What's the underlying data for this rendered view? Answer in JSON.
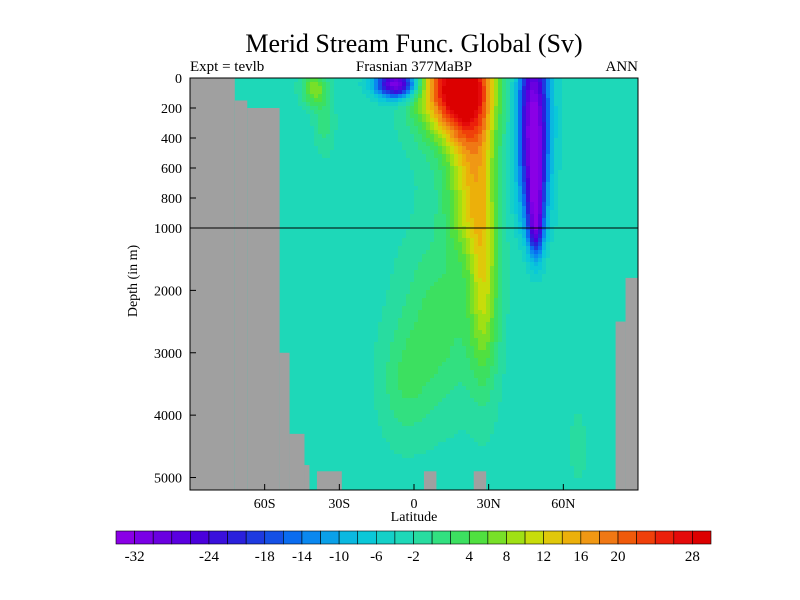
{
  "chart_data": {
    "type": "heatmap",
    "title": "Merid Stream Func. Global (Sv)",
    "left_label": "Expt = tevlb",
    "center_label": "Frasnian 377MaBP",
    "right_label": "ANN",
    "xlabel": "Latitude",
    "ylabel": "Depth (in m)",
    "x_range": [
      -90,
      90
    ],
    "x_ticks": [
      {
        "value": -60,
        "label": "60S"
      },
      {
        "value": -30,
        "label": "30S"
      },
      {
        "value": 0,
        "label": "0"
      },
      {
        "value": 30,
        "label": "30N"
      },
      {
        "value": 60,
        "label": "60N"
      }
    ],
    "y_upper_ticks": [
      {
        "value": 0,
        "label": "0"
      },
      {
        "value": 200,
        "label": "200"
      },
      {
        "value": 400,
        "label": "400"
      },
      {
        "value": 600,
        "label": "600"
      },
      {
        "value": 800,
        "label": "800"
      },
      {
        "value": 1000,
        "label": "1000"
      }
    ],
    "y_lower_ticks": [
      {
        "value": 2000,
        "label": "2000"
      },
      {
        "value": 3000,
        "label": "3000"
      },
      {
        "value": 4000,
        "label": "4000"
      },
      {
        "value": 5000,
        "label": "5000"
      }
    ],
    "depth_break": 1000,
    "depth_max": 5200,
    "land_color": "#a0a0a0",
    "colorbar": {
      "boundaries": [
        -32,
        -30,
        -28,
        -26,
        -24,
        -22,
        -20,
        -18,
        -16,
        -14,
        -12,
        -10,
        -8,
        -6,
        -4,
        -2,
        0,
        2,
        4,
        6,
        8,
        10,
        12,
        14,
        16,
        18,
        20,
        22,
        24,
        26,
        28,
        30
      ],
      "colors": [
        "#8a00e6",
        "#7a00e6",
        "#6a00e0",
        "#5a00e0",
        "#4a00dc",
        "#3a10dc",
        "#2a20dc",
        "#1e3ae0",
        "#1450e6",
        "#0a6cf0",
        "#0a88f0",
        "#0aa0e8",
        "#0ab8e0",
        "#0ac8d8",
        "#14d0c8",
        "#1ed8b8",
        "#28dca0",
        "#32e080",
        "#3ce060",
        "#50e040",
        "#78e028",
        "#a0e014",
        "#c8dc0a",
        "#e0c80a",
        "#ecb00a",
        "#f09814",
        "#f07814",
        "#f05a0a",
        "#f0400a",
        "#ec200a",
        "#e40a0a",
        "#dc0000"
      ],
      "labels": [
        "-32",
        "-24",
        "-18",
        "-14",
        "-10",
        "-6",
        "-2",
        "4",
        "8",
        "12",
        "16",
        "20",
        "28"
      ],
      "label_values": [
        -32,
        -24,
        -18,
        -14,
        -10,
        -6,
        -2,
        4,
        8,
        12,
        16,
        20,
        28
      ]
    },
    "background_value": -1,
    "land_mask": [
      {
        "lat_min": -90,
        "lat_max": -72,
        "depth_min": 0,
        "depth_max": 5200
      },
      {
        "lat_min": -72,
        "lat_max": -67,
        "depth_min": 150,
        "depth_max": 5200
      },
      {
        "lat_min": -67,
        "lat_max": -54,
        "depth_min": 200,
        "depth_max": 5200
      },
      {
        "lat_min": -54,
        "lat_max": -50,
        "depth_min": 3000,
        "depth_max": 5200
      },
      {
        "lat_min": -50,
        "lat_max": -44,
        "depth_min": 4300,
        "depth_max": 5200
      },
      {
        "lat_min": -44,
        "lat_max": -42,
        "depth_min": 4800,
        "depth_max": 5200
      },
      {
        "lat_min": -39,
        "lat_max": -29,
        "depth_min": 4900,
        "depth_max": 5200
      },
      {
        "lat_min": 4,
        "lat_max": 9,
        "depth_min": 4900,
        "depth_max": 5200
      },
      {
        "lat_min": 24,
        "lat_max": 29,
        "depth_min": 4900,
        "depth_max": 5200
      },
      {
        "lat_min": 81,
        "lat_max": 85,
        "depth_min": 2500,
        "depth_max": 5200
      },
      {
        "lat_min": 85,
        "lat_max": 90,
        "depth_min": 1800,
        "depth_max": 5200
      }
    ],
    "features": [
      {
        "lat": 16,
        "depth": 60,
        "lat_half_width": 14,
        "depth_scale": 320,
        "value": 30
      },
      {
        "lat": 22,
        "depth": 500,
        "lat_half_width": 9,
        "depth_scale": 900,
        "value": 14
      },
      {
        "lat": 28,
        "depth": 1800,
        "lat_half_width": 6,
        "depth_scale": 1600,
        "value": 13
      },
      {
        "lat": 10,
        "depth": 2500,
        "lat_half_width": 15,
        "depth_scale": 1400,
        "value": 6
      },
      {
        "lat": 48,
        "depth": 300,
        "lat_half_width": 6,
        "depth_scale": 650,
        "value": -30
      },
      {
        "lat": 49,
        "depth": 1000,
        "lat_half_width": 3,
        "depth_scale": 500,
        "value": -20
      },
      {
        "lat": -7,
        "depth": 40,
        "lat_half_width": 8,
        "depth_scale": 90,
        "value": -30
      },
      {
        "lat": -40,
        "depth": 70,
        "lat_half_width": 5,
        "depth_scale": 120,
        "value": 10
      },
      {
        "lat": -36,
        "depth": 300,
        "lat_half_width": 4,
        "depth_scale": 200,
        "value": 4
      },
      {
        "lat": -4,
        "depth": 3500,
        "lat_half_width": 10,
        "depth_scale": 900,
        "value": 4
      },
      {
        "lat": 66,
        "depth": 4500,
        "lat_half_width": 3,
        "depth_scale": 500,
        "value": 3
      }
    ]
  }
}
